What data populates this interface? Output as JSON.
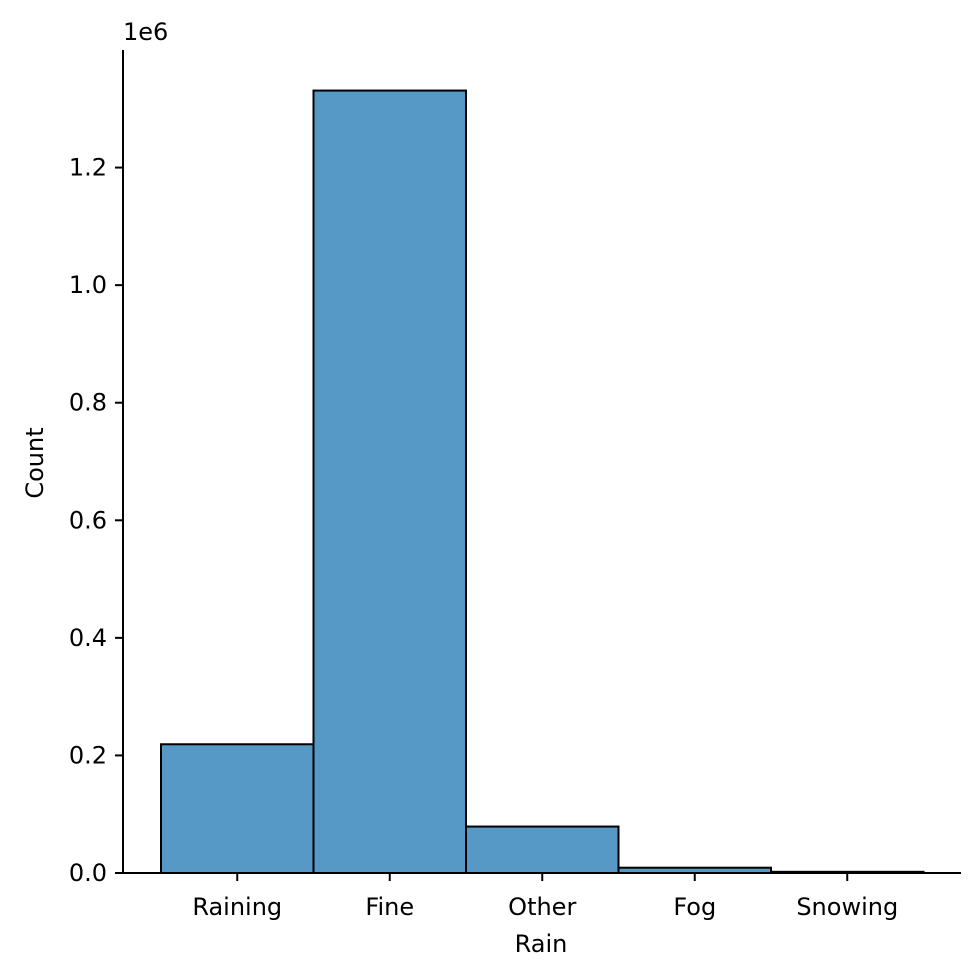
{
  "chart_data": {
    "type": "bar",
    "title": "",
    "xlabel": "Rain",
    "ylabel": "Count",
    "y_offset_label": "1e6",
    "y_scale": 1000000,
    "categories": [
      "Raining",
      "Fine",
      "Other",
      "Fog",
      "Snowing"
    ],
    "values": [
      219000,
      1331000,
      79000,
      9000,
      2000
    ],
    "ylim": [
      0,
      1400000
    ],
    "yticks": [
      0,
      200000,
      400000,
      600000,
      800000,
      1000000,
      1200000
    ],
    "ytick_labels": [
      "0.0",
      "0.2",
      "0.4",
      "0.6",
      "0.8",
      "1.0",
      "1.2"
    ],
    "grid": false,
    "legend": "none",
    "bar_color": "#5799c6",
    "bar_edge_color": "#000000"
  }
}
